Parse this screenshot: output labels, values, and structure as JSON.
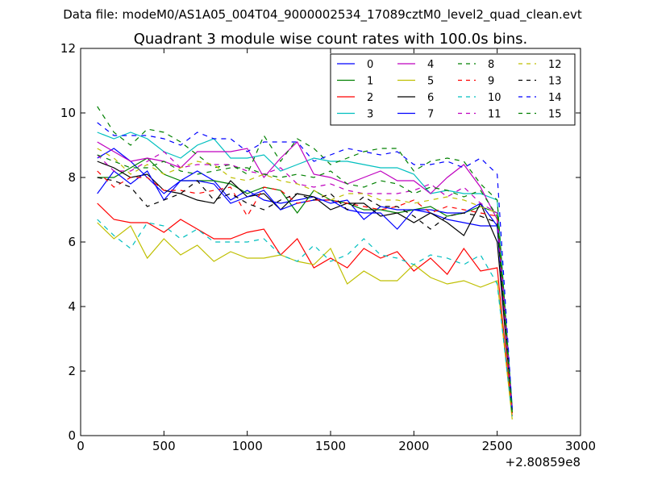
{
  "suptitle": "Data file: modeM0/AS1A05_004T04_9000002534_17089cztM0_level2_quad_clean.evt",
  "chart_data": {
    "type": "line",
    "title": "Quadrant 3 module wise count rates with 100.0s bins.",
    "xlabel": "",
    "ylabel": "",
    "xlim": [
      0,
      3000
    ],
    "ylim": [
      0,
      12
    ],
    "xticks": [
      0,
      500,
      1000,
      1500,
      2000,
      2500,
      3000
    ],
    "yticks": [
      0,
      2,
      4,
      6,
      8,
      10,
      12
    ],
    "x_offset_label": "+2.80859e8",
    "legend_position": "top-right",
    "legend_columns": 4,
    "x": [
      100,
      200,
      300,
      400,
      500,
      600,
      700,
      800,
      900,
      1000,
      1100,
      1200,
      1300,
      1400,
      1500,
      1600,
      1700,
      1800,
      1900,
      2000,
      2100,
      2200,
      2300,
      2400,
      2500,
      2590
    ],
    "series": [
      {
        "name": "0",
        "color": "#0000ff",
        "dash": "solid",
        "values": [
          8.6,
          8.9,
          8.5,
          8.0,
          7.5,
          7.9,
          8.2,
          7.9,
          7.3,
          7.6,
          7.3,
          7.2,
          7.3,
          7.4,
          7.2,
          7.3,
          6.7,
          7.1,
          7.0,
          7.0,
          6.9,
          6.7,
          6.6,
          6.5,
          6.5,
          0.8
        ]
      },
      {
        "name": "1",
        "color": "#008000",
        "dash": "solid",
        "values": [
          8.0,
          8.0,
          8.3,
          8.6,
          8.1,
          7.9,
          7.9,
          7.9,
          7.8,
          7.5,
          7.7,
          7.6,
          6.9,
          7.6,
          7.3,
          7.2,
          7.0,
          7.0,
          6.9,
          7.0,
          7.1,
          6.8,
          6.9,
          7.1,
          6.9,
          0.7
        ]
      },
      {
        "name": "2",
        "color": "#ff0000",
        "dash": "solid",
        "values": [
          7.2,
          6.7,
          6.6,
          6.6,
          6.3,
          6.7,
          6.4,
          6.1,
          6.1,
          6.3,
          6.4,
          5.6,
          6.1,
          5.2,
          5.5,
          5.2,
          5.8,
          5.5,
          5.7,
          5.1,
          5.5,
          5.0,
          5.8,
          5.1,
          5.2,
          0.6
        ]
      },
      {
        "name": "3",
        "color": "#00bfbf",
        "dash": "solid",
        "values": [
          9.4,
          9.2,
          9.4,
          9.2,
          8.8,
          8.6,
          9.0,
          9.2,
          8.6,
          8.6,
          8.7,
          8.2,
          8.4,
          8.6,
          8.5,
          8.5,
          8.4,
          8.3,
          8.3,
          8.1,
          7.5,
          7.6,
          7.5,
          7.5,
          7.3,
          0.9
        ]
      },
      {
        "name": "4",
        "color": "#bf00bf",
        "dash": "solid",
        "values": [
          9.1,
          8.8,
          8.5,
          8.6,
          8.5,
          8.3,
          8.8,
          8.8,
          8.8,
          8.9,
          8.0,
          8.6,
          9.1,
          8.1,
          8.0,
          7.8,
          8.0,
          8.2,
          7.9,
          7.9,
          7.5,
          8.0,
          8.4,
          7.7,
          6.7,
          0.8
        ]
      },
      {
        "name": "5",
        "color": "#bfbf00",
        "dash": "solid",
        "values": [
          6.6,
          6.1,
          6.5,
          5.5,
          6.1,
          5.6,
          5.9,
          5.4,
          5.7,
          5.5,
          5.5,
          5.6,
          5.4,
          5.3,
          5.8,
          4.7,
          5.1,
          4.8,
          4.8,
          5.3,
          4.9,
          4.7,
          4.8,
          4.6,
          4.8,
          0.5
        ]
      },
      {
        "name": "6",
        "color": "#000000",
        "dash": "solid",
        "values": [
          8.5,
          8.3,
          8.0,
          8.1,
          7.6,
          7.5,
          7.3,
          7.2,
          7.9,
          7.4,
          7.5,
          7.0,
          7.5,
          7.4,
          7.0,
          7.2,
          7.2,
          6.8,
          6.9,
          6.6,
          6.9,
          6.6,
          6.2,
          7.2,
          6.0,
          0.8
        ]
      },
      {
        "name": "7",
        "color": "#0000ff",
        "dash": "solid",
        "values": [
          7.5,
          8.2,
          7.8,
          8.2,
          7.3,
          7.9,
          7.9,
          7.8,
          7.2,
          7.4,
          7.6,
          7.0,
          7.2,
          7.3,
          7.3,
          7.0,
          6.9,
          6.9,
          6.4,
          7.0,
          7.0,
          6.9,
          6.9,
          7.2,
          6.5,
          0.8
        ]
      },
      {
        "name": "8",
        "color": "#008000",
        "dash": "dashed",
        "values": [
          10.2,
          9.4,
          9.0,
          9.5,
          9.4,
          9.1,
          8.7,
          8.3,
          8.4,
          8.1,
          9.3,
          8.5,
          9.2,
          8.9,
          8.4,
          8.6,
          8.8,
          8.9,
          8.9,
          8.2,
          8.5,
          8.6,
          8.5,
          7.8,
          7.3,
          0.8
        ]
      },
      {
        "name": "9",
        "color": "#ff0000",
        "dash": "dashed",
        "values": [
          8.2,
          7.7,
          8.0,
          8.0,
          7.6,
          7.6,
          7.5,
          7.6,
          7.7,
          6.8,
          7.7,
          7.6,
          7.2,
          7.3,
          7.3,
          7.2,
          7.1,
          7.0,
          7.1,
          7.3,
          6.9,
          7.1,
          7.0,
          6.9,
          6.8,
          0.7
        ]
      },
      {
        "name": "10",
        "color": "#00bfbf",
        "dash": "dashed",
        "values": [
          6.7,
          6.2,
          5.8,
          6.6,
          6.5,
          6.1,
          6.4,
          6.0,
          6.0,
          6.0,
          6.1,
          5.6,
          5.4,
          5.9,
          5.4,
          5.6,
          6.1,
          5.6,
          5.5,
          5.3,
          5.6,
          5.5,
          5.3,
          5.6,
          4.7,
          0.6
        ]
      },
      {
        "name": "11",
        "color": "#bf00bf",
        "dash": "dashed",
        "values": [
          8.7,
          8.2,
          8.2,
          8.5,
          8.8,
          8.3,
          8.4,
          8.4,
          8.4,
          8.2,
          8.1,
          8.3,
          7.8,
          7.7,
          7.8,
          7.6,
          7.5,
          7.5,
          7.5,
          7.6,
          7.8,
          7.4,
          7.7,
          7.2,
          6.9,
          0.8
        ]
      },
      {
        "name": "12",
        "color": "#bfbf00",
        "dash": "dashed",
        "values": [
          8.9,
          8.6,
          8.1,
          8.4,
          8.1,
          8.3,
          8.5,
          8.4,
          8.0,
          7.9,
          8.1,
          7.9,
          7.8,
          7.6,
          7.3,
          7.5,
          7.5,
          7.3,
          7.3,
          7.2,
          7.3,
          7.4,
          7.3,
          7.1,
          6.9,
          0.7
        ]
      },
      {
        "name": "13",
        "color": "#000000",
        "dash": "dashed",
        "values": [
          8.0,
          7.9,
          7.7,
          7.1,
          7.3,
          7.5,
          7.9,
          7.3,
          7.5,
          7.2,
          7.0,
          7.3,
          7.5,
          7.3,
          7.5,
          7.0,
          7.4,
          7.1,
          7.1,
          6.8,
          6.4,
          6.8,
          6.9,
          6.8,
          6.6,
          0.7
        ]
      },
      {
        "name": "14",
        "color": "#0000ff",
        "dash": "dashed",
        "values": [
          9.7,
          9.3,
          9.3,
          9.3,
          9.2,
          9.0,
          9.4,
          9.2,
          9.2,
          8.8,
          9.1,
          9.1,
          9.1,
          8.5,
          8.7,
          8.9,
          8.8,
          8.7,
          8.8,
          8.4,
          8.4,
          8.5,
          8.3,
          8.6,
          8.1,
          0.8
        ]
      },
      {
        "name": "15",
        "color": "#008000",
        "dash": "dashed",
        "values": [
          8.7,
          8.5,
          8.3,
          8.3,
          8.5,
          8.2,
          8.1,
          8.2,
          8.3,
          8.3,
          8.1,
          8.0,
          8.1,
          8.0,
          8.2,
          7.8,
          7.7,
          7.9,
          7.8,
          7.5,
          7.7,
          7.6,
          7.4,
          7.6,
          6.8,
          0.7
        ]
      }
    ]
  }
}
